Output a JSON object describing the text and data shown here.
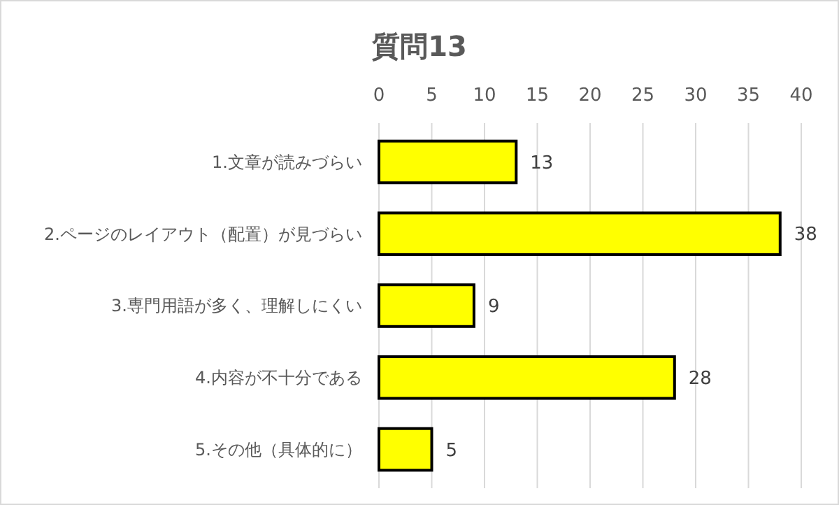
{
  "chart_data": {
    "type": "bar",
    "orientation": "horizontal",
    "title": "質問13",
    "categories": [
      "1.文章が読みづらい",
      "2.ページのレイアウト（配置）が見づらい",
      "3.専門用語が多く、理解しにくい",
      "4.内容が不十分である",
      "5.その他（具体的に）"
    ],
    "values": [
      13,
      38,
      9,
      28,
      5
    ],
    "color": "#ffff00",
    "xlim": [
      0,
      40
    ],
    "xticks": [
      0,
      5,
      10,
      15,
      20,
      25,
      30,
      35,
      40
    ],
    "grid": "x",
    "data_labels": true
  }
}
